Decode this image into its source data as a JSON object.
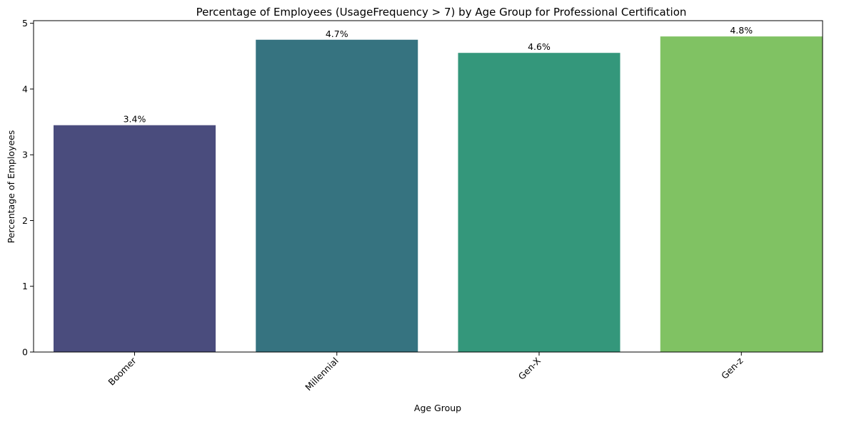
{
  "chart_data": {
    "type": "bar",
    "title": "Percentage of Employees (UsageFrequency > 7) by Age Group for Professional Certification",
    "xlabel": "Age Group",
    "ylabel": "Percentage of Employees",
    "categories": [
      "Boomer",
      "Millennial",
      "Gen-X",
      "Gen-z"
    ],
    "values": [
      3.45,
      4.75,
      4.55,
      4.8
    ],
    "data_labels": [
      "3.4%",
      "4.7%",
      "4.6%",
      "4.8%"
    ],
    "colors": [
      "#4a4c7d",
      "#367380",
      "#34977b",
      "#80c263"
    ],
    "ylim": [
      0,
      5.04
    ],
    "yticks": [
      0,
      1,
      2,
      3,
      4,
      5
    ],
    "grid": false,
    "legend": "none"
  }
}
